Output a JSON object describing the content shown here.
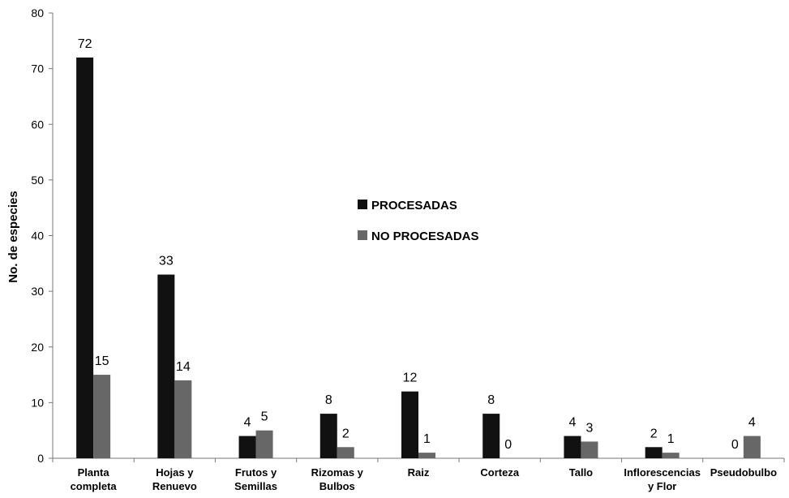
{
  "chart_data": {
    "type": "bar",
    "ylabel": "No. de especies",
    "xlabel": "",
    "ylim": [
      0,
      80
    ],
    "yticks": [
      0,
      10,
      20,
      30,
      40,
      50,
      60,
      70,
      80
    ],
    "grid": false,
    "legend_position": "center",
    "categories": [
      [
        "Planta",
        "completa"
      ],
      [
        "Hojas y",
        "Renuevo"
      ],
      [
        "Frutos y",
        "Semillas"
      ],
      [
        "Rizomas y",
        "Bulbos"
      ],
      [
        "Raiz"
      ],
      [
        "Corteza"
      ],
      [
        "Tallo"
      ],
      [
        "Inflorescencias",
        "y Flor"
      ],
      [
        "Pseudobulbo"
      ]
    ],
    "series": [
      {
        "name": "PROCESADAS",
        "color": "#111111",
        "values": [
          72,
          33,
          4,
          8,
          12,
          8,
          4,
          2,
          0
        ]
      },
      {
        "name": "NO PROCESADAS",
        "color": "#676767",
        "values": [
          15,
          14,
          5,
          2,
          1,
          0,
          3,
          1,
          4
        ]
      }
    ]
  }
}
